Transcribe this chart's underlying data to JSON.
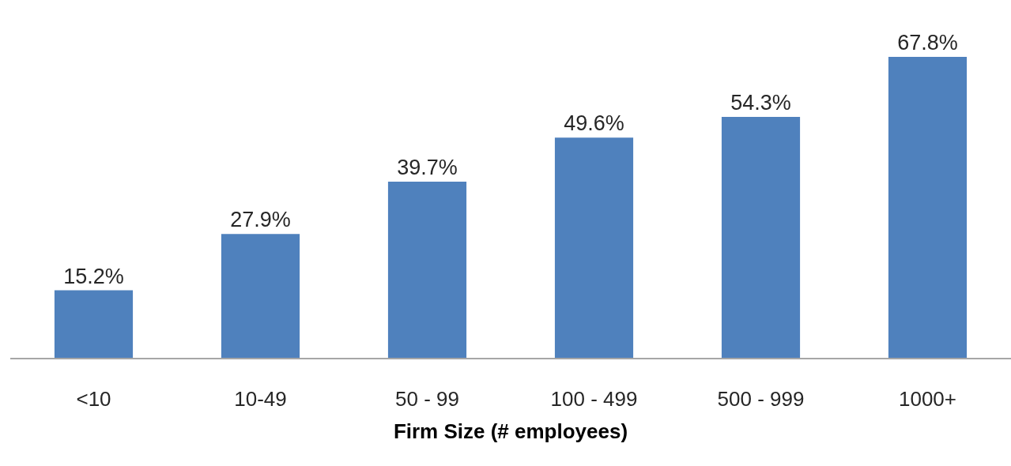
{
  "chart_data": {
    "type": "bar",
    "xlabel": "Firm Size (# employees)",
    "categories": [
      "<10",
      "10-49",
      "50 - 99",
      "100 - 499",
      "500 - 999",
      "1000+"
    ],
    "values": [
      15.2,
      27.9,
      39.7,
      49.6,
      54.3,
      67.8
    ],
    "value_labels": [
      "15.2%",
      "27.9%",
      "39.7%",
      "49.6%",
      "54.3%",
      "67.8%"
    ],
    "color": "#4f81bd"
  }
}
